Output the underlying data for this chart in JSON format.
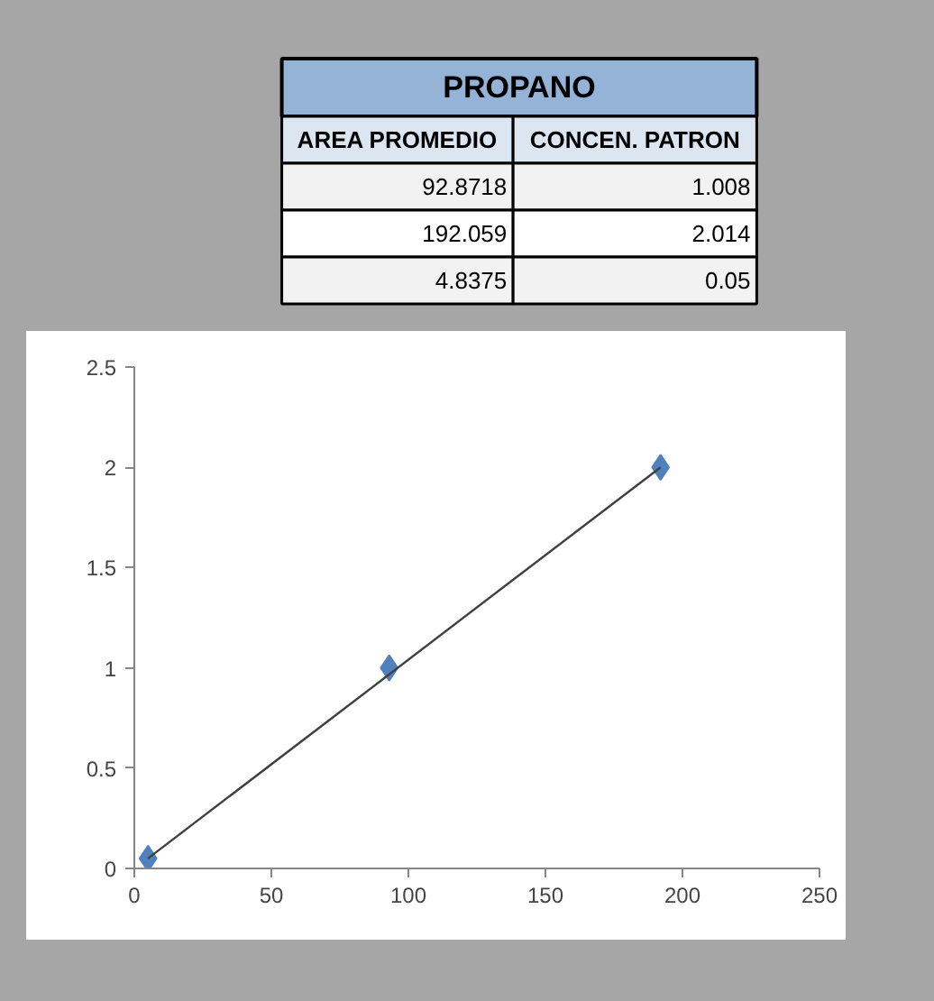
{
  "chart_data": [
    {
      "type": "other",
      "title": "PROPANO",
      "annotations": [
        "AREA PROMEDIO",
        "CONCEN. PATRON",
        "92.8718",
        "1.008",
        "192.059",
        "2.014",
        "4.8375",
        "0.05"
      ]
    },
    {
      "type": "scatter",
      "x": [
        93,
        192,
        5
      ],
      "series": [
        {
          "type": "scatter",
          "color": "#4f81bd",
          "marker": "diamond",
          "values": [
            1.0,
            2.0,
            0.05
          ]
        },
        {
          "type": "line",
          "color": "#404040",
          "x": [
            5,
            192
          ],
          "values": [
            0.05,
            2.0
          ]
        }
      ],
      "xlim": [
        0,
        250
      ],
      "ylim": [
        0,
        2.5
      ],
      "xticks": [
        0,
        50,
        100,
        150,
        200,
        250
      ],
      "yticks": [
        0,
        0.5,
        1,
        1.5,
        2,
        2.5
      ],
      "grid": false
    }
  ]
}
